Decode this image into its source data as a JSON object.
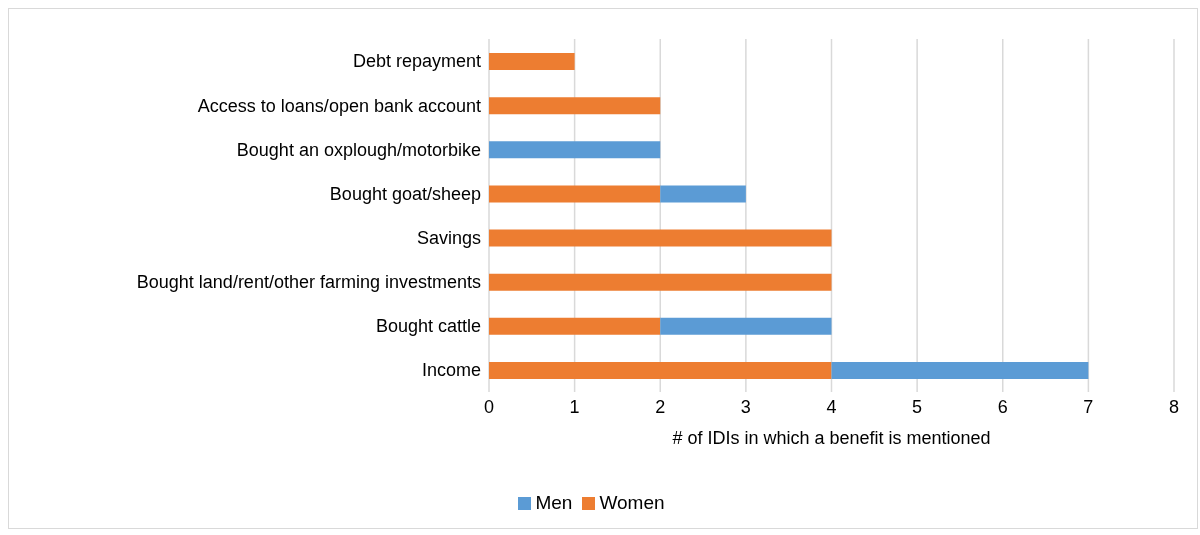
{
  "chart_data": {
    "type": "bar",
    "orientation": "horizontal",
    "stacked": true,
    "xlabel": "# of IDIs in which a benefit is mentioned",
    "categories": [
      "Debt repayment",
      "Access to loans/open bank account",
      "Bought an oxplough/motorbike",
      "Bought goat/sheep",
      "Savings",
      "Bought land/rent/other farming investments",
      "Bought cattle",
      "Income"
    ],
    "series": [
      {
        "name": "Women",
        "color": "#ed7d31",
        "values": [
          1,
          2,
          null,
          2,
          4,
          4,
          2,
          4
        ]
      },
      {
        "name": "Men",
        "color": "#5b9bd5",
        "values": [
          null,
          null,
          2,
          1,
          null,
          null,
          2,
          3
        ]
      }
    ],
    "xlim": [
      0,
      8
    ],
    "xticks": [
      0,
      1,
      2,
      3,
      4,
      5,
      6,
      7,
      8
    ],
    "grid": "x",
    "legend": "bottom"
  }
}
